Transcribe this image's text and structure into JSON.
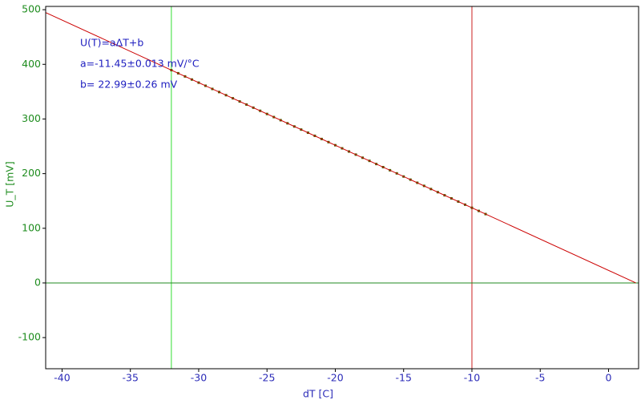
{
  "chart_data": {
    "type": "scatter",
    "xlabel": "dT [C]",
    "ylabel": "U_T [mV]",
    "annotations": [
      "U(T)=aΔT+b",
      "a=-11.45±0.013 mV/°C",
      "b= 22.99±0.26 mV"
    ],
    "xlim": [
      -41.2,
      2.2
    ],
    "ylim": [
      -157,
      506
    ],
    "xticks": [
      -40,
      -35,
      -30,
      -25,
      -20,
      -15,
      -10,
      -5,
      0
    ],
    "yticks": [
      -100,
      0,
      100,
      200,
      300,
      400,
      500
    ],
    "series": [
      {
        "color": "#4a6400",
        "marker": "square",
        "x": [
          -32,
          -31.5,
          -31,
          -30.5,
          -30,
          -29.5,
          -29,
          -28.5,
          -28,
          -27.5,
          -27,
          -26.5,
          -26,
          -25.5,
          -25,
          -24.5,
          -24,
          -23.5,
          -23,
          -22.5,
          -22,
          -21.5,
          -21,
          -20.5,
          -20,
          -19.5,
          -19,
          -18.5,
          -18,
          -17.5,
          -17,
          -16.5,
          -16,
          -15.5,
          -15,
          -14.5,
          -14,
          -13.5,
          -13,
          -12.5,
          -12,
          -11.5,
          -11,
          -10.5,
          -10,
          -9.5,
          -9
        ],
        "values": [
          389.4,
          383.7,
          377.9,
          372.2,
          366.5,
          360.8,
          355.0,
          349.3,
          343.6,
          337.9,
          332.1,
          326.4,
          320.7,
          315.0,
          309.2,
          303.5,
          297.8,
          292.1,
          286.3,
          280.6,
          274.9,
          269.2,
          263.4,
          257.7,
          252.0,
          246.3,
          240.5,
          234.8,
          229.1,
          223.4,
          217.6,
          211.9,
          206.2,
          200.5,
          194.7,
          189.0,
          183.3,
          177.6,
          171.8,
          166.1,
          160.4,
          154.7,
          148.9,
          143.2,
          137.5,
          131.8,
          126.0
        ]
      },
      {
        "color": "#cc0000",
        "marker": "line",
        "x": [
          -41.2,
          2
        ],
        "values": [
          494.7,
          0.1
        ]
      }
    ],
    "cursors": [
      {
        "x": -32,
        "color": "#33dd33"
      },
      {
        "x": -10,
        "color": "#cc2222"
      }
    ],
    "hlines": [
      {
        "y": 0,
        "color": "#228822"
      }
    ],
    "xtick_color": "#2b2bb8",
    "ytick_color": "#1e8c1e",
    "annotation_color": "#2020c0"
  }
}
